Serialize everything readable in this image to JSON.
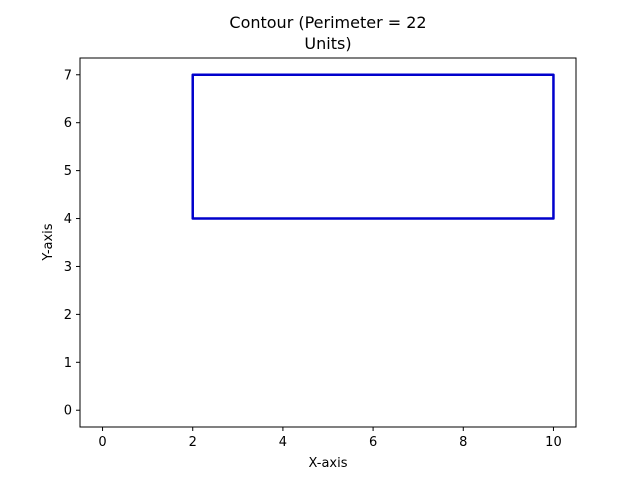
{
  "chart_data": {
    "type": "line",
    "title_lines": [
      "Contour (Perimeter = 22",
      "Units)"
    ],
    "xlabel": "X-axis",
    "ylabel": "Y-axis",
    "xlim": [
      -0.5,
      10.5
    ],
    "ylim": [
      -0.35,
      7.35
    ],
    "x_ticks": [
      0,
      2,
      4,
      6,
      8,
      10
    ],
    "y_ticks": [
      0,
      1,
      2,
      3,
      4,
      5,
      6,
      7
    ],
    "grid": false,
    "legend": "none",
    "series": [
      {
        "color": "#0000cc",
        "points": [
          {
            "x": 2,
            "y": 4
          },
          {
            "x": 10,
            "y": 4
          },
          {
            "x": 10,
            "y": 7
          },
          {
            "x": 2,
            "y": 7
          },
          {
            "x": 2,
            "y": 4
          }
        ]
      }
    ]
  }
}
